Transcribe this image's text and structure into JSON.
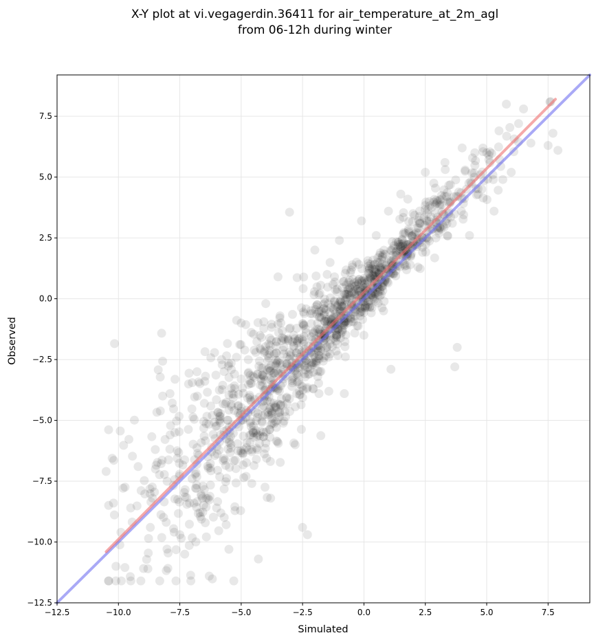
{
  "chart_data": {
    "type": "scatter",
    "title_lines": [
      "X-Y plot at vi.vegagerdin.36411 for air_temperature_at_2m_agl",
      "from 06-12h during winter"
    ],
    "xlabel": "Simulated",
    "ylabel": "Observed",
    "xlim": [
      -12.5,
      9.2
    ],
    "ylim": [
      -12.5,
      9.2
    ],
    "xticks": [
      "−12.5",
      "−10.0",
      "−7.5",
      "−5.0",
      "−2.5",
      "0.0",
      "2.5",
      "5.0",
      "7.5"
    ],
    "yticks": [
      "−12.5",
      "−10.0",
      "−7.5",
      "−5.0",
      "−2.5",
      "0.0",
      "2.5",
      "5.0",
      "7.5"
    ],
    "grid": true,
    "series": [
      {
        "label_role": "observations",
        "color": "#000000",
        "point_count": 1400,
        "points_sample": [
          [
            -10.5,
            -7.1
          ],
          [
            -10.2,
            -8.4
          ],
          [
            -10.1,
            -11.0
          ],
          [
            -9.9,
            -9.6
          ],
          [
            -9.5,
            -8.6
          ],
          [
            -9.2,
            -6.9
          ],
          [
            -8.8,
            -11.1
          ],
          [
            -8.7,
            -9.4
          ],
          [
            -8.5,
            -6.2
          ],
          [
            -8.2,
            -4.0
          ],
          [
            -7.9,
            -3.9
          ],
          [
            -7.7,
            -5.5
          ],
          [
            -7.5,
            -9.7
          ],
          [
            -7.3,
            -10.5
          ],
          [
            -7.0,
            -7.4
          ],
          [
            -6.8,
            -3.0
          ],
          [
            -6.5,
            -4.3
          ],
          [
            -6.3,
            -11.4
          ],
          [
            -6.0,
            -8.6
          ],
          [
            -5.8,
            -2.5
          ],
          [
            -5.5,
            -10.3
          ],
          [
            -5.3,
            -11.6
          ],
          [
            -5.0,
            -3.3
          ],
          [
            -5.0,
            -1.0
          ],
          [
            -4.8,
            -7.3
          ],
          [
            -4.5,
            -5.7
          ],
          [
            -4.3,
            -10.7
          ],
          [
            -4.2,
            -2.1
          ],
          [
            -4.0,
            -0.2
          ],
          [
            -3.8,
            -8.2
          ],
          [
            -3.5,
            0.9
          ],
          [
            -3.3,
            -4.4
          ],
          [
            -3.0,
            -1.2
          ],
          [
            -2.8,
            -6.0
          ],
          [
            -2.5,
            -9.4
          ],
          [
            -2.3,
            -9.7
          ],
          [
            -2.0,
            2.0
          ],
          [
            -1.8,
            -3.0
          ],
          [
            -1.5,
            1.0
          ],
          [
            -1.2,
            -1.1
          ],
          [
            -1.0,
            2.4
          ],
          [
            -0.8,
            -3.9
          ],
          [
            -0.5,
            -0.2
          ],
          [
            -0.3,
            1.5
          ],
          [
            -0.1,
            3.2
          ],
          [
            0.0,
            -1.5
          ],
          [
            0.2,
            0.8
          ],
          [
            0.4,
            1.2
          ],
          [
            0.5,
            2.6
          ],
          [
            0.8,
            -0.5
          ],
          [
            1.0,
            3.6
          ],
          [
            1.1,
            -2.9
          ],
          [
            1.3,
            1.6
          ],
          [
            1.5,
            4.3
          ],
          [
            1.7,
            2.2
          ],
          [
            2.0,
            3.5
          ],
          [
            2.2,
            1.3
          ],
          [
            2.5,
            5.2
          ],
          [
            2.7,
            2.8
          ],
          [
            3.0,
            4.0
          ],
          [
            3.3,
            5.6
          ],
          [
            3.6,
            3.1
          ],
          [
            3.7,
            -2.8
          ],
          [
            3.8,
            -2.0
          ],
          [
            4.0,
            6.2
          ],
          [
            4.3,
            2.6
          ],
          [
            4.5,
            5.0
          ],
          [
            4.8,
            4.5
          ],
          [
            5.0,
            6.0
          ],
          [
            5.3,
            3.6
          ],
          [
            5.5,
            6.9
          ],
          [
            5.8,
            8.0
          ],
          [
            6.0,
            5.2
          ],
          [
            6.3,
            7.2
          ],
          [
            6.5,
            7.8
          ],
          [
            6.8,
            6.4
          ],
          [
            7.5,
            6.3
          ],
          [
            7.7,
            6.8
          ],
          [
            7.9,
            6.1
          ]
        ]
      },
      {
        "label_role": "regression-fit",
        "color": "#ef7070",
        "line_from": [
          -10.5,
          -10.4
        ],
        "line_to": [
          7.8,
          8.2
        ]
      },
      {
        "label_role": "identity-1:1",
        "color": "#7070f0",
        "line_from": [
          -12.5,
          -12.5
        ],
        "line_to": [
          9.2,
          9.2
        ]
      }
    ]
  }
}
